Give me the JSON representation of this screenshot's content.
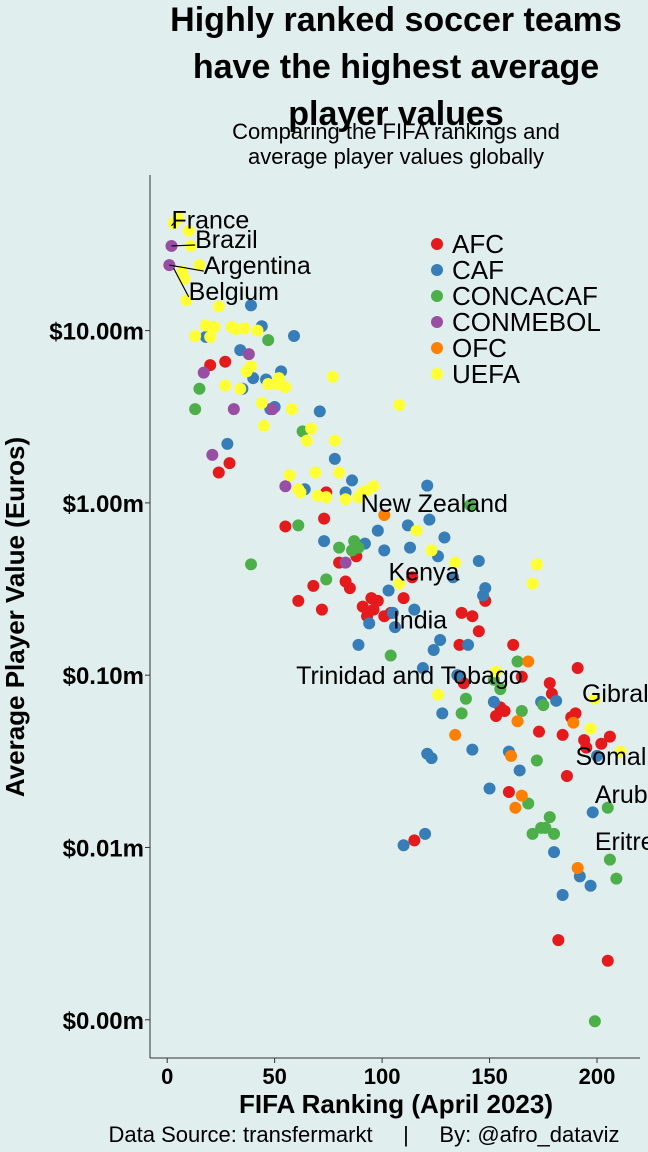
{
  "chart_data": {
    "type": "scatter",
    "title_lines": [
      "Highly ranked soccer teams",
      "have the highest average",
      "player values"
    ],
    "subtitle_lines": [
      "Comparing the FIFA rankings and",
      "average player values globally"
    ],
    "xlabel": "FIFA Ranking (April 2023)",
    "ylabel": "Average Player Value (Euros)",
    "x_range": [
      -8,
      220
    ],
    "y_scale": "log10",
    "y_range_millions": [
      0.0006,
      80
    ],
    "x_ticks": [
      0,
      50,
      100,
      150,
      200
    ],
    "y_ticks": [
      {
        "value": 10,
        "label": "$10.00m"
      },
      {
        "value": 1,
        "label": "$1.00m"
      },
      {
        "value": 0.1,
        "label": "$0.10m"
      },
      {
        "value": 0.01,
        "label": "$0.01m"
      },
      {
        "value": 0.001,
        "label": "$0.00m"
      }
    ],
    "grid": false,
    "legend_position": "top-right",
    "caption": "Data Source: transfermarkt     |     By: @afro_dataviz",
    "series": [
      {
        "name": "AFC",
        "color": "#e41a1c",
        "points": [
          [
            20,
            6.3
          ],
          [
            27,
            6.6
          ],
          [
            24,
            1.5
          ],
          [
            29,
            1.7
          ],
          [
            55,
            0.73
          ],
          [
            61,
            0.27
          ],
          [
            68,
            0.33
          ],
          [
            72,
            0.24
          ],
          [
            73,
            0.81
          ],
          [
            74,
            1.15
          ],
          [
            80,
            0.45
          ],
          [
            83,
            0.35
          ],
          [
            85,
            0.32
          ],
          [
            88,
            0.49
          ],
          [
            91,
            0.25
          ],
          [
            93,
            0.22
          ],
          [
            95,
            0.28
          ],
          [
            96,
            0.24
          ],
          [
            98,
            0.27
          ],
          [
            101,
            0.22
          ],
          [
            104,
            0.23
          ],
          [
            110,
            0.28
          ],
          [
            114,
            0.37
          ],
          [
            115,
            0.011
          ],
          [
            136,
            0.15
          ],
          [
            137,
            0.23
          ],
          [
            138,
            0.09
          ],
          [
            142,
            0.22
          ],
          [
            145,
            0.18
          ],
          [
            148,
            0.27
          ],
          [
            153,
            0.058
          ],
          [
            155,
            0.065
          ],
          [
            157,
            0.062
          ],
          [
            159,
            0.021
          ],
          [
            161,
            0.15
          ],
          [
            165,
            0.098
          ],
          [
            173,
            0.047
          ],
          [
            178,
            0.09
          ],
          [
            179,
            0.078
          ],
          [
            182,
            0.0029
          ],
          [
            184,
            0.045
          ],
          [
            186,
            0.026
          ],
          [
            188,
            0.057
          ],
          [
            190,
            0.06
          ],
          [
            191,
            0.11
          ],
          [
            194,
            0.042
          ],
          [
            195,
            0.038
          ],
          [
            202,
            0.04
          ],
          [
            205,
            0.0022
          ],
          [
            206,
            0.044
          ]
        ]
      },
      {
        "name": "CAF",
        "color": "#377eb8",
        "points": [
          [
            18,
            9.2
          ],
          [
            28,
            2.2
          ],
          [
            34,
            7.7
          ],
          [
            35,
            4.6
          ],
          [
            39,
            14
          ],
          [
            40,
            5.3
          ],
          [
            44,
            10.6
          ],
          [
            46,
            5.2
          ],
          [
            48,
            3.5
          ],
          [
            50,
            3.6
          ],
          [
            53,
            5.8
          ],
          [
            59,
            9.3
          ],
          [
            64,
            1.2
          ],
          [
            71,
            3.4
          ],
          [
            73,
            0.6
          ],
          [
            78,
            1.8
          ],
          [
            83,
            1.15
          ],
          [
            86,
            1.35
          ],
          [
            89,
            0.15
          ],
          [
            92,
            0.58
          ],
          [
            94,
            0.2
          ],
          [
            98,
            0.69
          ],
          [
            101,
            0.53
          ],
          [
            103,
            0.31
          ],
          [
            105,
            0.23
          ],
          [
            106,
            0.19
          ],
          [
            112,
            0.74
          ],
          [
            113,
            0.55
          ],
          [
            115,
            0.24
          ],
          [
            119,
            0.11
          ],
          [
            120,
            0.012
          ],
          [
            121,
            1.26
          ],
          [
            121,
            0.035
          ],
          [
            122,
            0.8
          ],
          [
            123,
            0.033
          ],
          [
            124,
            0.14
          ],
          [
            126,
            0.49
          ],
          [
            127,
            0.16
          ],
          [
            128,
            0.06
          ],
          [
            129,
            0.63
          ],
          [
            133,
            0.37
          ],
          [
            135,
            0.1
          ],
          [
            140,
            0.15
          ],
          [
            142,
            0.037
          ],
          [
            145,
            0.46
          ],
          [
            147,
            0.29
          ],
          [
            148,
            0.32
          ],
          [
            150,
            0.022
          ],
          [
            152,
            0.07
          ],
          [
            159,
            0.036
          ],
          [
            164,
            0.028
          ],
          [
            174,
            0.07
          ],
          [
            180,
            0.0094
          ],
          [
            181,
            0.071
          ],
          [
            184,
            0.0053
          ],
          [
            192,
            0.0068
          ],
          [
            197,
            0.006
          ],
          [
            198,
            0.016
          ],
          [
            200,
            0.034
          ],
          [
            110,
            0.0103
          ]
        ]
      },
      {
        "name": "CONCACAF",
        "color": "#4daf4a",
        "points": [
          [
            13,
            3.5
          ],
          [
            15,
            4.6
          ],
          [
            39,
            0.44
          ],
          [
            47,
            8.8
          ],
          [
            61,
            0.74
          ],
          [
            63,
            2.6
          ],
          [
            74,
            0.36
          ],
          [
            80,
            0.55
          ],
          [
            86,
            0.53
          ],
          [
            87,
            0.6
          ],
          [
            89,
            0.55
          ],
          [
            104,
            0.13
          ],
          [
            137,
            0.06
          ],
          [
            139,
            0.073
          ],
          [
            141,
            0.97
          ],
          [
            152,
            0.094
          ],
          [
            155,
            0.083
          ],
          [
            163,
            0.12
          ],
          [
            165,
            0.062
          ],
          [
            168,
            0.018
          ],
          [
            170,
            0.012
          ],
          [
            172,
            0.032
          ],
          [
            174,
            0.013
          ],
          [
            175,
            0.067
          ],
          [
            176,
            0.013
          ],
          [
            178,
            0.015
          ],
          [
            180,
            0.012
          ],
          [
            199,
            0.00098
          ],
          [
            205,
            0.017
          ],
          [
            206,
            0.0085
          ],
          [
            209,
            0.0066
          ]
        ]
      },
      {
        "name": "CONMEBOL",
        "color": "#984ea3",
        "points": [
          [
            1,
            24
          ],
          [
            2,
            31
          ],
          [
            17,
            5.7
          ],
          [
            21,
            1.9
          ],
          [
            31,
            3.5
          ],
          [
            38,
            7.3
          ],
          [
            49,
            3.5
          ],
          [
            55,
            1.25
          ],
          [
            83,
            0.45
          ]
        ]
      },
      {
        "name": "OFC",
        "color": "#ff7f00",
        "points": [
          [
            101,
            0.85
          ],
          [
            134,
            0.045
          ],
          [
            160,
            0.034
          ],
          [
            162,
            0.017
          ],
          [
            163,
            0.054
          ],
          [
            165,
            0.02
          ],
          [
            168,
            0.12
          ],
          [
            189,
            0.053
          ],
          [
            191,
            0.0076
          ]
        ]
      },
      {
        "name": "UEFA",
        "color": "#ffff33",
        "points": [
          [
            3,
            42
          ],
          [
            5,
            45
          ],
          [
            7,
            22
          ],
          [
            8,
            20
          ],
          [
            9,
            15
          ],
          [
            10,
            38
          ],
          [
            11,
            31
          ],
          [
            13,
            9.3
          ],
          [
            15,
            24
          ],
          [
            18,
            10.7
          ],
          [
            20,
            9.2
          ],
          [
            22,
            10.5
          ],
          [
            24,
            13.8
          ],
          [
            27,
            4.8
          ],
          [
            30,
            10.5
          ],
          [
            32,
            10.2
          ],
          [
            34,
            4.6
          ],
          [
            36,
            10.3
          ],
          [
            37,
            5.8
          ],
          [
            39,
            6.2
          ],
          [
            42,
            10
          ],
          [
            44,
            3.8
          ],
          [
            45,
            2.8
          ],
          [
            47,
            4.9
          ],
          [
            51,
            4.9
          ],
          [
            52,
            5.3
          ],
          [
            55,
            4.7
          ],
          [
            57,
            1.45
          ],
          [
            58,
            3.5
          ],
          [
            61,
            1.2
          ],
          [
            62,
            1.15
          ],
          [
            65,
            2.3
          ],
          [
            67,
            2.7
          ],
          [
            69,
            1.5
          ],
          [
            70,
            1.1
          ],
          [
            74,
            1.08
          ],
          [
            77,
            5.4
          ],
          [
            78,
            2.3
          ],
          [
            80,
            1.5
          ],
          [
            83,
            1.05
          ],
          [
            89,
            1.08
          ],
          [
            91,
            1.15
          ],
          [
            93,
            1.18
          ],
          [
            96,
            1.25
          ],
          [
            108,
            3.7
          ],
          [
            108,
            0.34
          ],
          [
            116,
            0.69
          ],
          [
            123,
            0.53
          ],
          [
            126,
            0.077
          ],
          [
            134,
            0.45
          ],
          [
            153,
            0.105
          ],
          [
            170,
            0.34
          ],
          [
            172,
            0.44
          ],
          [
            197,
            0.049
          ],
          [
            199,
            0.073
          ],
          [
            211,
            0.036
          ]
        ]
      }
    ],
    "annotations": [
      {
        "text": "France",
        "x": 2,
        "y": 44,
        "line_to": {
          "x": 3,
          "y": 42
        }
      },
      {
        "text": "Brazil",
        "x": 13,
        "y": 34,
        "line_to": {
          "x": 2,
          "y": 31
        }
      },
      {
        "text": "Argentina",
        "x": 17,
        "y": 24,
        "line_to": {
          "x": 1,
          "y": 24
        }
      },
      {
        "text": "Belgium",
        "x": 10,
        "y": 17,
        "line_to": {
          "x": 3,
          "y": 23
        }
      },
      {
        "text": "New Zealand",
        "x": 90,
        "y": 1.0
      },
      {
        "text": "Kenya",
        "x": 103,
        "y": 0.4
      },
      {
        "text": "India",
        "x": 105,
        "y": 0.21
      },
      {
        "text": "Trinidad and Tobago",
        "x": 60,
        "y": 0.1
      },
      {
        "text": "Gibraltar",
        "x": 193,
        "y": 0.079
      },
      {
        "text": "Somalia",
        "x": 190,
        "y": 0.034
      },
      {
        "text": "Aruba",
        "x": 199,
        "y": 0.0205
      },
      {
        "text": "Eritrea",
        "x": 199,
        "y": 0.0109
      }
    ]
  }
}
